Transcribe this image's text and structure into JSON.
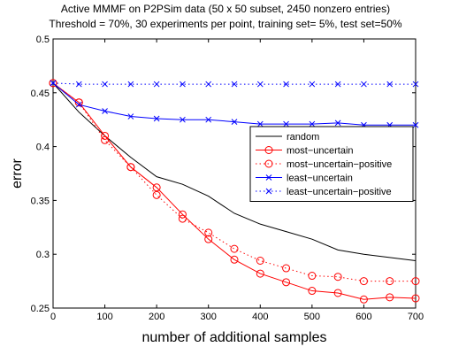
{
  "chart_data": {
    "type": "line",
    "title": "Active MMMF on P2PSim data (50 x 50 subset, 2450 nonzero entries)",
    "subtitle": "Threshold = 70%, 30 experiments per point, training set= 5%, test set=50%",
    "xlabel": "number of additional samples",
    "ylabel": "error",
    "xlim": [
      0,
      700
    ],
    "ylim": [
      0.25,
      0.5
    ],
    "xticks": [
      "0",
      "100",
      "200",
      "300",
      "400",
      "500",
      "600",
      "700"
    ],
    "yticks": [
      "0.25",
      "0.3",
      "0.35",
      "0.4",
      "0.45",
      "0.5"
    ],
    "grid": false,
    "legend_position": "right",
    "series": [
      {
        "name": "random",
        "color": "#000000",
        "line": "solid",
        "marker": "none",
        "x": [
          0,
          50,
          100,
          150,
          200,
          250,
          300,
          350,
          400,
          450,
          500,
          550,
          600,
          650,
          700
        ],
        "y": [
          0.459,
          0.432,
          0.41,
          0.39,
          0.372,
          0.365,
          0.354,
          0.338,
          0.328,
          0.321,
          0.314,
          0.304,
          0.3,
          0.297,
          0.294
        ]
      },
      {
        "name": "most−uncertain",
        "color": "#ff0000",
        "line": "solid",
        "marker": "circle",
        "x": [
          0,
          50,
          100,
          150,
          200,
          250,
          300,
          350,
          400,
          450,
          500,
          550,
          600,
          650,
          700
        ],
        "y": [
          0.459,
          0.441,
          0.41,
          0.381,
          0.362,
          0.337,
          0.314,
          0.295,
          0.282,
          0.274,
          0.266,
          0.264,
          0.258,
          0.26,
          0.259
        ]
      },
      {
        "name": "most−uncertain−positive",
        "color": "#ff0000",
        "line": "dotted",
        "marker": "circle",
        "x": [
          0,
          50,
          100,
          150,
          200,
          250,
          300,
          350,
          400,
          450,
          500,
          550,
          600,
          650,
          700
        ],
        "y": [
          0.459,
          0.441,
          0.406,
          0.381,
          0.355,
          0.333,
          0.32,
          0.305,
          0.294,
          0.287,
          0.28,
          0.279,
          0.275,
          0.275,
          0.275
        ]
      },
      {
        "name": "least−uncertain",
        "color": "#0000ff",
        "line": "solid",
        "marker": "x",
        "x": [
          0,
          50,
          100,
          150,
          200,
          250,
          300,
          350,
          400,
          450,
          500,
          550,
          600,
          650,
          700
        ],
        "y": [
          0.459,
          0.439,
          0.433,
          0.428,
          0.426,
          0.425,
          0.425,
          0.423,
          0.421,
          0.421,
          0.421,
          0.422,
          0.42,
          0.42,
          0.42
        ]
      },
      {
        "name": "least−uncertain−positive",
        "color": "#0000ff",
        "line": "dotted",
        "marker": "x",
        "x": [
          0,
          50,
          100,
          150,
          200,
          250,
          300,
          350,
          400,
          450,
          500,
          550,
          600,
          650,
          700
        ],
        "y": [
          0.459,
          0.458,
          0.458,
          0.458,
          0.458,
          0.458,
          0.458,
          0.458,
          0.458,
          0.458,
          0.458,
          0.458,
          0.458,
          0.458,
          0.458
        ]
      }
    ]
  }
}
